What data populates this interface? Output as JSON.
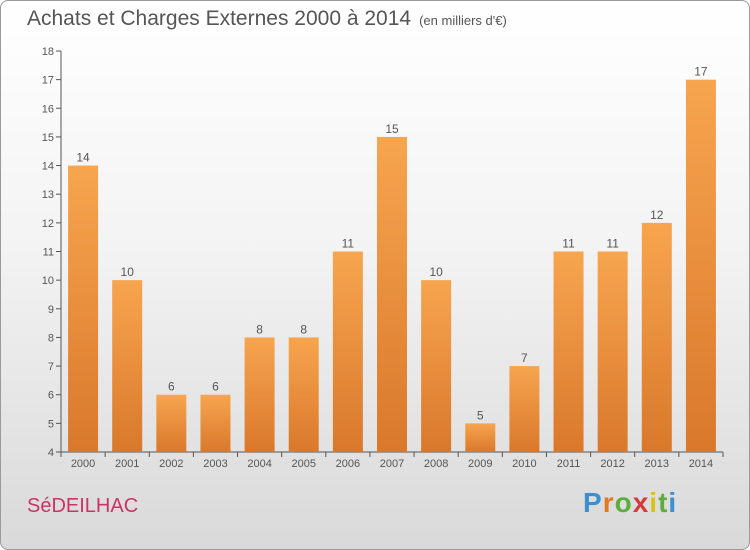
{
  "title": "Achats et Charges Externes 2000 à 2014",
  "unit": "(en milliers d'€)",
  "commune": "SéDEILHAC",
  "logo": {
    "text": "Proxiti",
    "letters": [
      "P",
      "r",
      "o",
      "x",
      "i",
      "t",
      "i"
    ]
  },
  "colors": {
    "bar_top": "#f7a54f",
    "bar_bottom": "#d9782b",
    "title": "#555555",
    "commune": "#cc3366"
  },
  "chart_data": {
    "type": "bar",
    "title": "Achats et Charges Externes 2000 à 2014",
    "categories": [
      "2000",
      "2001",
      "2002",
      "2003",
      "2004",
      "2005",
      "2006",
      "2007",
      "2008",
      "2009",
      "2010",
      "2011",
      "2012",
      "2013",
      "2014"
    ],
    "values": [
      14,
      10,
      6,
      6,
      8,
      8,
      11,
      15,
      10,
      5,
      7,
      11,
      11,
      12,
      17
    ],
    "ylim": [
      4,
      18
    ],
    "yticks": [
      4,
      5,
      6,
      7,
      8,
      9,
      10,
      11,
      12,
      13,
      14,
      15,
      16,
      17,
      18
    ],
    "grid": false,
    "legend": "none",
    "xlabel": "",
    "ylabel": ""
  }
}
